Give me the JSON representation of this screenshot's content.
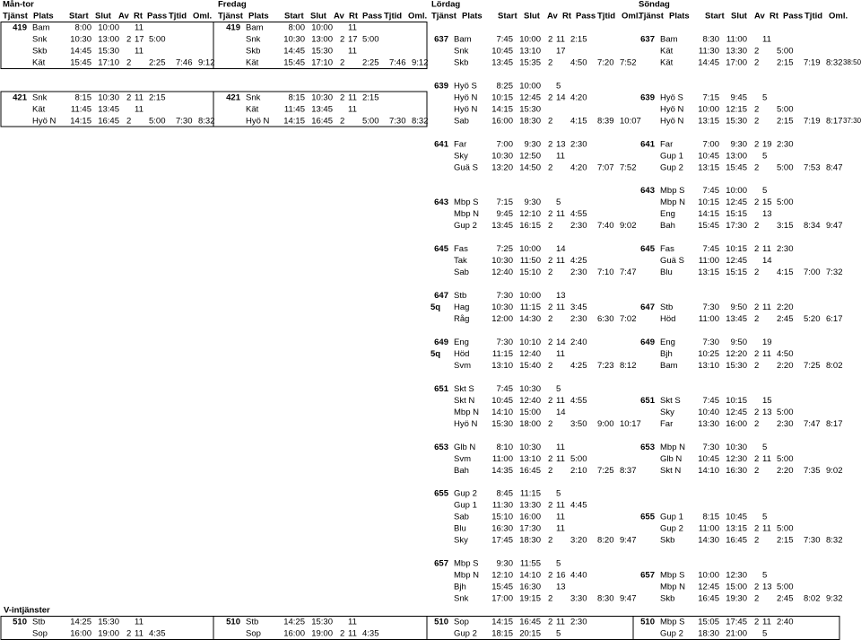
{
  "days": [
    "Mån-tor",
    "Fredag",
    "Lördag",
    "Söndag"
  ],
  "columns": [
    "Tjänst",
    "Plats",
    "Start",
    "Slut",
    "Av",
    "Rt",
    "Pass",
    "Tjtid",
    "Oml."
  ],
  "rows": [
    {
      "cells": [
        [
          419,
          "Bam",
          "8:00",
          "10:00",
          null,
          11
        ],
        [
          419,
          "Bam",
          "8:00",
          "10:00",
          null,
          11
        ],
        null,
        null
      ]
    },
    {
      "cells": [
        [
          null,
          "Snk",
          "10:30",
          "13:00",
          2,
          17,
          "5:00"
        ],
        [
          null,
          "Snk",
          "10:30",
          "13:00",
          2,
          17,
          "5:00"
        ],
        [
          637,
          "Bam",
          "7:45",
          "10:00",
          2,
          11,
          "2:15"
        ],
        [
          637,
          "Bam",
          "8:30",
          "11:00",
          null,
          11
        ]
      ]
    },
    {
      "cells": [
        [
          null,
          "Skb",
          "14:45",
          "15:30",
          null,
          11
        ],
        [
          null,
          "Skb",
          "14:45",
          "15:30",
          null,
          11
        ],
        [
          null,
          "Snk",
          "10:45",
          "13:10",
          null,
          17
        ],
        [
          null,
          "Kät",
          "11:30",
          "13:30",
          2,
          null,
          "5:00"
        ]
      ]
    },
    {
      "cells": [
        [
          null,
          "Kät",
          "15:45",
          "17:10",
          2,
          null,
          "2:25",
          "7:46",
          "9:12"
        ],
        [
          null,
          "Kät",
          "15:45",
          "17:10",
          2,
          null,
          "2:25",
          "7:46",
          "9:12"
        ],
        [
          null,
          "Skb",
          "13:45",
          "15:35",
          2,
          null,
          "4:50",
          "7:20",
          "7:52"
        ],
        [
          null,
          "Kät",
          "14:45",
          "17:00",
          2,
          null,
          "2:15",
          "7:19",
          "8:32"
        ]
      ],
      "total": "38:50"
    },
    {
      "cells": [
        null,
        null,
        null,
        null
      ]
    },
    {
      "cells": [
        null,
        null,
        [
          639,
          "Hyö S",
          "8:25",
          "10:00",
          null,
          5
        ],
        null
      ]
    },
    {
      "cells": [
        [
          421,
          "Snk",
          "8:15",
          "10:30",
          2,
          11,
          "2:15"
        ],
        [
          421,
          "Snk",
          "8:15",
          "10:30",
          2,
          11,
          "2:15"
        ],
        [
          null,
          "Hyö N",
          "10:15",
          "12:45",
          2,
          14,
          "4:20"
        ],
        [
          639,
          "Hyö S",
          "7:15",
          "9:45",
          null,
          5
        ]
      ]
    },
    {
      "cells": [
        [
          null,
          "Kät",
          "11:45",
          "13:45",
          null,
          11
        ],
        [
          null,
          "Kät",
          "11:45",
          "13:45",
          null,
          11
        ],
        [
          null,
          "Hyö N",
          "14:15",
          "15:30"
        ],
        [
          null,
          "Hyö N",
          "10:00",
          "12:15",
          2,
          null,
          "5:00"
        ]
      ]
    },
    {
      "cells": [
        [
          null,
          "Hyö N",
          "14:15",
          "16:45",
          2,
          null,
          "5:00",
          "7:30",
          "8:32"
        ],
        [
          null,
          "Hyö N",
          "14:15",
          "16:45",
          2,
          null,
          "5:00",
          "7:30",
          "8:32"
        ],
        [
          null,
          "Sab",
          "16:00",
          "18:30",
          2,
          null,
          "4:15",
          "8:39",
          "10:07"
        ],
        [
          null,
          "Hyö N",
          "13:15",
          "15:30",
          2,
          null,
          "2:15",
          "7:19",
          "8:17"
        ]
      ],
      "total": "37:30"
    },
    {
      "cells": [
        null,
        null,
        null,
        null
      ]
    },
    {
      "cells": [
        null,
        null,
        [
          641,
          "Far",
          "7:00",
          "9:30",
          2,
          13,
          "2:30"
        ],
        [
          641,
          "Far",
          "7:00",
          "9:30",
          2,
          19,
          "2:30"
        ]
      ]
    },
    {
      "cells": [
        null,
        null,
        [
          null,
          "Sky",
          "10:30",
          "12:50",
          null,
          11
        ],
        [
          null,
          "Gup 1",
          "10:45",
          "13:00",
          null,
          5
        ]
      ]
    },
    {
      "cells": [
        null,
        null,
        [
          null,
          "Guä S",
          "13:20",
          "14:50",
          2,
          null,
          "4:20",
          "7:07",
          "7:52"
        ],
        [
          null,
          "Gup 2",
          "13:15",
          "15:45",
          2,
          null,
          "5:00",
          "7:53",
          "8:47"
        ]
      ]
    },
    {
      "cells": [
        null,
        null,
        null,
        null
      ]
    },
    {
      "cells": [
        null,
        null,
        null,
        [
          643,
          "Mbp S",
          "7:45",
          "10:00",
          null,
          5
        ]
      ]
    },
    {
      "cells": [
        null,
        null,
        [
          643,
          "Mbp S",
          "7:15",
          "9:30",
          null,
          5
        ],
        [
          null,
          "Mbp N",
          "10:15",
          "12:45",
          2,
          15,
          "5:00"
        ]
      ]
    },
    {
      "cells": [
        null,
        null,
        [
          null,
          "Mbp N",
          "9:45",
          "12:10",
          2,
          11,
          "4:55"
        ],
        [
          null,
          "Eng",
          "14:15",
          "15:15",
          null,
          13
        ]
      ]
    },
    {
      "cells": [
        null,
        null,
        [
          null,
          "Gup 2",
          "13:45",
          "16:15",
          2,
          null,
          "2:30",
          "7:40",
          "9:02"
        ],
        [
          null,
          "Bah",
          "15:45",
          "17:30",
          2,
          null,
          "3:15",
          "8:34",
          "9:47"
        ]
      ]
    },
    {
      "cells": [
        null,
        null,
        null,
        null
      ]
    },
    {
      "cells": [
        null,
        null,
        [
          645,
          "Fas",
          "7:25",
          "10:00",
          null,
          14
        ],
        [
          645,
          "Fas",
          "7:45",
          "10:15",
          2,
          11,
          "2:30"
        ]
      ]
    },
    {
      "cells": [
        null,
        null,
        [
          null,
          "Tak",
          "10:30",
          "11:50",
          2,
          11,
          "4:25"
        ],
        [
          null,
          "Guä S",
          "11:00",
          "12:45",
          null,
          14
        ]
      ]
    },
    {
      "cells": [
        null,
        null,
        [
          null,
          "Sab",
          "12:40",
          "15:10",
          2,
          null,
          "2:30",
          "7:10",
          "7:47"
        ],
        [
          null,
          "Blu",
          "13:15",
          "15:15",
          2,
          null,
          "4:15",
          "7:00",
          "7:32"
        ]
      ]
    },
    {
      "cells": [
        null,
        null,
        null,
        null
      ]
    },
    {
      "cells": [
        null,
        null,
        [
          647,
          "Stb",
          "7:30",
          "10:00",
          null,
          13
        ],
        null
      ]
    },
    {
      "cells": [
        null,
        null,
        [
          null,
          "Hag",
          "10:30",
          "11:15",
          2,
          11,
          "3:45"
        ],
        [
          647,
          "Stb",
          "7:30",
          "9:50",
          2,
          11,
          "2:20"
        ]
      ],
      "note": "5q"
    },
    {
      "cells": [
        null,
        null,
        [
          null,
          "Råg",
          "12:00",
          "14:30",
          2,
          null,
          "2:30",
          "6:30",
          "7:02"
        ],
        [
          null,
          "Höd",
          "11:00",
          "13:45",
          2,
          null,
          "2:45",
          "5:20",
          "6:17"
        ]
      ]
    },
    {
      "cells": [
        null,
        null,
        null,
        null
      ]
    },
    {
      "cells": [
        null,
        null,
        [
          649,
          "Eng",
          "7:30",
          "10:10",
          2,
          14,
          "2:40"
        ],
        [
          649,
          "Eng",
          "7:30",
          "9:50",
          null,
          19
        ]
      ]
    },
    {
      "cells": [
        null,
        null,
        [
          null,
          "Höd",
          "11:15",
          "12:40",
          null,
          11
        ],
        [
          null,
          "Bjh",
          "10:25",
          "12:20",
          2,
          11,
          "4:50"
        ]
      ],
      "note": "5q"
    },
    {
      "cells": [
        null,
        null,
        [
          null,
          "Svm",
          "13:10",
          "15:40",
          2,
          null,
          "4:25",
          "7:23",
          "8:12"
        ],
        [
          null,
          "Bam",
          "13:10",
          "15:30",
          2,
          null,
          "2:20",
          "7:25",
          "8:02"
        ]
      ]
    },
    {
      "cells": [
        null,
        null,
        null,
        null
      ]
    },
    {
      "cells": [
        null,
        null,
        [
          651,
          "Skt S",
          "7:45",
          "10:30",
          null,
          5
        ],
        null
      ]
    },
    {
      "cells": [
        null,
        null,
        [
          null,
          "Skt N",
          "10:45",
          "12:40",
          2,
          11,
          "4:55"
        ],
        [
          651,
          "Skt S",
          "7:45",
          "10:15",
          null,
          15
        ]
      ]
    },
    {
      "cells": [
        null,
        null,
        [
          null,
          "Mbp N",
          "14:10",
          "15:00",
          null,
          14
        ],
        [
          null,
          "Sky",
          "10:40",
          "12:45",
          2,
          13,
          "5:00"
        ]
      ]
    },
    {
      "cells": [
        null,
        null,
        [
          null,
          "Hyö N",
          "15:30",
          "18:00",
          2,
          null,
          "3:50",
          "9:00",
          "10:17"
        ],
        [
          null,
          "Far",
          "13:30",
          "16:00",
          2,
          null,
          "2:30",
          "7:47",
          "8:17"
        ]
      ]
    },
    {
      "cells": [
        null,
        null,
        null,
        null
      ]
    },
    {
      "cells": [
        null,
        null,
        [
          653,
          "Glb N",
          "8:10",
          "10:30",
          null,
          11
        ],
        [
          653,
          "Mbp N",
          "7:30",
          "10:30",
          null,
          5
        ]
      ]
    },
    {
      "cells": [
        null,
        null,
        [
          null,
          "Svm",
          "11:00",
          "13:10",
          2,
          11,
          "5:00"
        ],
        [
          null,
          "Glb N",
          "10:45",
          "12:30",
          2,
          11,
          "5:00"
        ]
      ]
    },
    {
      "cells": [
        null,
        null,
        [
          null,
          "Bah",
          "14:35",
          "16:45",
          2,
          null,
          "2:10",
          "7:25",
          "8:37"
        ],
        [
          null,
          "Skt N",
          "14:10",
          "16:30",
          2,
          null,
          "2:20",
          "7:35",
          "9:02"
        ]
      ]
    },
    {
      "cells": [
        null,
        null,
        null,
        null
      ]
    },
    {
      "cells": [
        null,
        null,
        [
          655,
          "Gup 2",
          "8:45",
          "11:15",
          null,
          5
        ],
        null
      ]
    },
    {
      "cells": [
        null,
        null,
        [
          null,
          "Gup 1",
          "11:30",
          "13:30",
          2,
          11,
          "4:45"
        ],
        null
      ]
    },
    {
      "cells": [
        null,
        null,
        [
          null,
          "Sab",
          "15:10",
          "16:00",
          null,
          11
        ],
        [
          655,
          "Gup 1",
          "8:15",
          "10:45",
          null,
          5
        ]
      ]
    },
    {
      "cells": [
        null,
        null,
        [
          null,
          "Blu",
          "16:30",
          "17:30",
          null,
          11
        ],
        [
          null,
          "Gup 2",
          "11:00",
          "13:15",
          2,
          11,
          "5:00"
        ]
      ]
    },
    {
      "cells": [
        null,
        null,
        [
          null,
          "Sky",
          "17:45",
          "18:30",
          2,
          null,
          "3:20",
          "8:20",
          "9:47"
        ],
        [
          null,
          "Skb",
          "14:30",
          "16:45",
          2,
          null,
          "2:15",
          "7:30",
          "8:32"
        ]
      ]
    },
    {
      "cells": [
        null,
        null,
        null,
        null
      ]
    },
    {
      "cells": [
        null,
        null,
        [
          657,
          "Mbp S",
          "9:30",
          "11:55",
          null,
          5
        ],
        null
      ]
    },
    {
      "cells": [
        null,
        null,
        [
          null,
          "Mbp N",
          "12:10",
          "14:10",
          2,
          16,
          "4:40"
        ],
        [
          657,
          "Mbp S",
          "10:00",
          "12:30",
          null,
          5
        ]
      ]
    },
    {
      "cells": [
        null,
        null,
        [
          null,
          "Bjh",
          "15:45",
          "16:30",
          null,
          13
        ],
        [
          null,
          "Mbp N",
          "12:45",
          "15:00",
          2,
          13,
          "5:00"
        ]
      ]
    },
    {
      "cells": [
        null,
        null,
        [
          null,
          "Snk",
          "17:00",
          "19:15",
          2,
          null,
          "3:30",
          "8:30",
          "9:47"
        ],
        [
          null,
          "Skb",
          "16:45",
          "19:30",
          2,
          null,
          "2:45",
          "8:02",
          "9:32"
        ]
      ]
    },
    {
      "cells": [
        null,
        null,
        null,
        null
      ],
      "section": "V-intjänster"
    },
    {
      "cells": [
        [
          510,
          "Stb",
          "14:25",
          "15:30",
          null,
          11
        ],
        [
          510,
          "Stb",
          "14:25",
          "15:30",
          null,
          11
        ],
        [
          510,
          "Sop",
          "14:15",
          "16:45",
          2,
          11,
          "2:30"
        ],
        [
          510,
          "Mbp S",
          "15:05",
          "17:45",
          2,
          11,
          "2:40"
        ]
      ]
    },
    {
      "cells": [
        [
          null,
          "Sop",
          "16:00",
          "19:00",
          2,
          11,
          "4:35"
        ],
        [
          null,
          "Sop",
          "16:00",
          "19:00",
          2,
          11,
          "4:35"
        ],
        [
          null,
          "Gup 2",
          "18:15",
          "20:15",
          null,
          5
        ],
        [
          null,
          "Gup 2",
          "18:30",
          "21:00",
          null,
          5
        ]
      ]
    }
  ]
}
